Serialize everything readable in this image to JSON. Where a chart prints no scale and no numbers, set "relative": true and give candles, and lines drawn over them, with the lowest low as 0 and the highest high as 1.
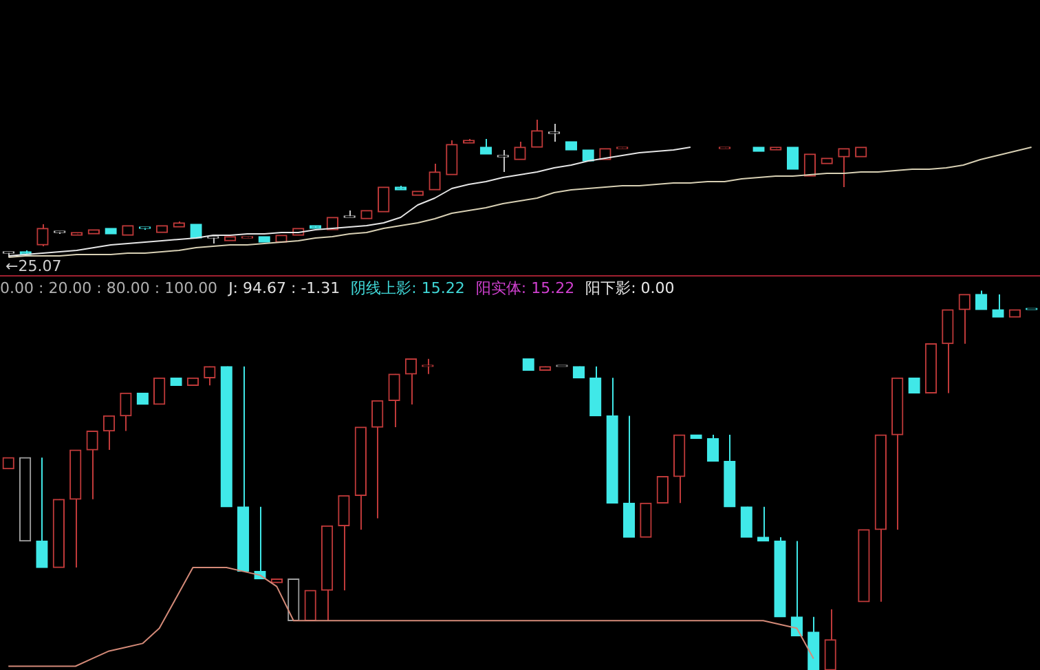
{
  "chart_data": [
    {
      "type": "candlestick",
      "relative": true,
      "annotations": [
        "←25.07"
      ],
      "categories": [
        null,
        null,
        null,
        null,
        null,
        null,
        null,
        null,
        null,
        null,
        null,
        null,
        null,
        null,
        null,
        null,
        null,
        null,
        null,
        null,
        null,
        null,
        null,
        null,
        null,
        null,
        null,
        null,
        null,
        null,
        null,
        null,
        null,
        null,
        null,
        null,
        null,
        null,
        null,
        null,
        null,
        null,
        null,
        null,
        null,
        null,
        null,
        null,
        null,
        null,
        null,
        null,
        null,
        null,
        null,
        null,
        null,
        null,
        null,
        null,
        null
      ],
      "ohlc": [
        [
          0.03,
          0.04,
          0,
          0.03
        ],
        [
          0.04,
          0.05,
          0.02,
          0.02
        ],
        [
          0.09,
          0.24,
          0.08,
          0.21
        ],
        [
          0.18,
          0.19,
          0.17,
          0.18
        ],
        [
          0.16,
          0.18,
          0.16,
          0.18
        ],
        [
          0.17,
          0.2,
          0.17,
          0.2
        ],
        [
          0.21,
          0.21,
          0.17,
          0.17
        ],
        [
          0.16,
          0.23,
          0.16,
          0.23
        ],
        [
          0.21,
          0.22,
          0.2,
          0.21
        ],
        [
          0.18,
          0.23,
          0.18,
          0.23
        ],
        [
          0.22,
          0.26,
          0.22,
          0.25
        ],
        [
          0.24,
          0.24,
          0.14,
          0.14
        ],
        [
          0.14,
          0.15,
          0.1,
          0.14
        ],
        [
          0.12,
          0.15,
          0.12,
          0.15
        ],
        [
          0.14,
          0.15,
          0.14,
          0.15
        ],
        [
          0.15,
          0.15,
          0.11,
          0.11
        ],
        [
          0.11,
          0.16,
          0.11,
          0.16
        ],
        [
          0.16,
          0.21,
          0.16,
          0.21
        ],
        [
          0.23,
          0.23,
          0.21,
          0.21
        ],
        [
          0.2,
          0.29,
          0.2,
          0.29
        ],
        [
          0.29,
          0.34,
          0.29,
          0.29
        ],
        [
          0.28,
          0.34,
          0.28,
          0.34
        ],
        [
          0.33,
          0.51,
          0.33,
          0.51
        ],
        [
          0.51,
          0.52,
          0.49,
          0.49
        ],
        [
          0.45,
          0.48,
          0.45,
          0.48
        ],
        [
          0.49,
          0.68,
          0.49,
          0.62
        ],
        [
          0.6,
          0.85,
          0.6,
          0.82
        ],
        [
          0.83,
          0.86,
          0.83,
          0.85
        ],
        [
          0.8,
          0.86,
          0.75,
          0.75
        ],
        [
          0.73,
          0.78,
          0.62,
          0.73
        ],
        [
          0.71,
          0.84,
          0.71,
          0.8
        ],
        [
          0.8,
          1,
          0.8,
          0.92
        ],
        [
          0.9,
          0.97,
          0.84,
          0.9
        ],
        [
          0.84,
          0.84,
          0.78,
          0.78
        ],
        [
          0.78,
          0.78,
          0.7,
          0.7
        ],
        [
          0.71,
          0.79,
          0.71,
          0.79
        ],
        [
          0.79,
          0.8,
          0.79,
          0.8
        ],
        null,
        null,
        null,
        null,
        null,
        [
          0.79,
          0.8,
          0.79,
          0.8
        ],
        null,
        [
          0.8,
          0.8,
          0.77,
          0.77
        ],
        [
          0.78,
          0.8,
          0.78,
          0.8
        ],
        [
          0.8,
          0.8,
          0.64,
          0.64
        ],
        [
          0.59,
          0.75,
          0.59,
          0.75
        ],
        [
          0.68,
          0.72,
          0.68,
          0.72
        ],
        [
          0.73,
          0.79,
          0.51,
          0.79
        ],
        [
          0.73,
          0.8,
          0.73,
          0.8
        ],
        null,
        null,
        null,
        null,
        null,
        null,
        null,
        null,
        null,
        null
      ],
      "colors": [
        "#c8c8c8",
        "#40e8e8",
        "#c03a3a",
        "#c8c8c8",
        "#c03a3a",
        "#c03a3a",
        "#40e8e8",
        "#c03a3a",
        "#40e8e8",
        "#c03a3a",
        "#c03a3a",
        "#40e8e8",
        "#c8c8c8",
        "#c03a3a",
        "#c03a3a",
        "#40e8e8",
        "#c03a3a",
        "#c03a3a",
        "#40e8e8",
        "#c03a3a",
        "#c8c8c8",
        "#c03a3a",
        "#c03a3a",
        "#40e8e8",
        "#c03a3a",
        "#c03a3a",
        "#c03a3a",
        "#c03a3a",
        "#40e8e8",
        "#c8c8c8",
        "#c03a3a",
        "#c03a3a",
        "#c8c8c8",
        "#40e8e8",
        "#40e8e8",
        "#c03a3a",
        "#c03a3a",
        null,
        null,
        null,
        null,
        null,
        "#c03a3a",
        null,
        "#40e8e8",
        "#c03a3a",
        "#40e8e8",
        "#c03a3a",
        "#c03a3a",
        "#c03a3a",
        "#c03a3a",
        null,
        null,
        null,
        null,
        null,
        null,
        null,
        null,
        null,
        null
      ],
      "series": [
        {
          "type": "line",
          "color": "#e6e6e6",
          "values": [
            0.01,
            0.02,
            0.03,
            0.04,
            0.05,
            0.07,
            0.09,
            0.1,
            0.11,
            0.12,
            0.13,
            0.14,
            0.16,
            0.16,
            0.17,
            0.17,
            0.18,
            0.18,
            0.2,
            0.21,
            0.22,
            0.23,
            0.25,
            0.29,
            0.38,
            0.43,
            0.5,
            0.53,
            0.55,
            0.58,
            0.6,
            0.62,
            0.65,
            0.67,
            0.7,
            0.72,
            0.74,
            0.76,
            0.77,
            0.78,
            0.8,
            null,
            null,
            null,
            null,
            null,
            null,
            null,
            null,
            null,
            null,
            null,
            null,
            null,
            null,
            null,
            null,
            null,
            null,
            null,
            null
          ]
        },
        {
          "type": "line",
          "color": "#d8d0b4",
          "values": [
            0,
            0.01,
            0.01,
            0.01,
            0.02,
            0.02,
            0.02,
            0.03,
            0.03,
            0.04,
            0.05,
            0.07,
            0.08,
            0.09,
            0.09,
            0.1,
            0.11,
            0.12,
            0.14,
            0.15,
            0.17,
            0.18,
            0.21,
            0.23,
            0.25,
            0.28,
            0.32,
            0.34,
            0.36,
            0.39,
            0.41,
            0.43,
            0.47,
            0.49,
            0.5,
            0.51,
            0.52,
            0.52,
            0.53,
            0.54,
            0.54,
            0.55,
            0.55,
            0.57,
            0.58,
            0.59,
            0.59,
            0.6,
            0.61,
            0.61,
            0.62,
            0.62,
            0.63,
            0.64,
            0.64,
            0.65,
            0.67,
            0.71,
            0.74,
            0.77,
            0.8
          ]
        }
      ]
    },
    {
      "type": "candlestick",
      "relative": true,
      "annotations": [
        "0.00 : 20.00 : 80.00 : 100.00",
        "J: 94.67 : -1.31",
        "阴线上影: 15.22",
        "阳实体: 15.22",
        "阳下影: 0.00"
      ],
      "categories": [
        null,
        null,
        null,
        null,
        null,
        null,
        null,
        null,
        null,
        null,
        null,
        null,
        null,
        null,
        null,
        null,
        null,
        null,
        null,
        null,
        null,
        null,
        null,
        null,
        null,
        null,
        null,
        null,
        null,
        null,
        null,
        null,
        null,
        null,
        null,
        null,
        null,
        null,
        null,
        null,
        null,
        null,
        null,
        null,
        null,
        null,
        null,
        null,
        null,
        null,
        null,
        null,
        null,
        null,
        null,
        null,
        null,
        null,
        null,
        null,
        null,
        null
      ],
      "ohlc": [
        [
          0.53,
          0.56,
          0.53,
          0.56
        ],
        [
          0.34,
          0.56,
          0.34,
          0.56
        ],
        [
          0.34,
          0.56,
          0.27,
          0.27
        ],
        [
          0.27,
          0.45,
          0.27,
          0.45
        ],
        [
          0.45,
          0.58,
          0.27,
          0.58
        ],
        [
          0.58,
          0.63,
          0.45,
          0.63
        ],
        [
          0.63,
          0.67,
          0.58,
          0.67
        ],
        [
          0.67,
          0.73,
          0.63,
          0.73
        ],
        [
          0.73,
          0.73,
          0.7,
          0.7
        ],
        [
          0.7,
          0.77,
          0.7,
          0.77
        ],
        [
          0.77,
          0.77,
          0.75,
          0.75
        ],
        [
          0.75,
          0.77,
          0.75,
          0.77
        ],
        [
          0.77,
          0.8,
          0.75,
          0.8
        ],
        [
          0.8,
          0.8,
          0.43,
          0.43
        ],
        [
          0.43,
          0.8,
          0.26,
          0.26
        ],
        [
          0.26,
          0.43,
          0.24,
          0.24
        ],
        [
          0.23,
          0.24,
          0.23,
          0.24
        ],
        [
          0.13,
          0.24,
          0.13,
          0.24
        ],
        [
          0.13,
          0.21,
          0.13,
          0.21
        ],
        [
          0.21,
          0.38,
          0.13,
          0.38
        ],
        [
          0.38,
          0.46,
          0.21,
          0.46
        ],
        [
          0.46,
          0.64,
          0.37,
          0.64
        ],
        [
          0.64,
          0.71,
          0.4,
          0.71
        ],
        [
          0.71,
          0.78,
          0.64,
          0.78
        ],
        [
          0.78,
          0.82,
          0.7,
          0.82
        ],
        [
          0.8,
          0.82,
          0.78,
          0.8
        ],
        null,
        null,
        null,
        null,
        null,
        [
          0.82,
          0.82,
          0.79,
          0.79
        ],
        [
          0.79,
          0.8,
          0.79,
          0.8
        ],
        [
          0.8,
          0.8,
          0.8,
          0.8
        ],
        [
          0.8,
          0.8,
          0.77,
          0.77
        ],
        [
          0.77,
          0.8,
          0.67,
          0.67
        ],
        [
          0.67,
          0.77,
          0.44,
          0.44
        ],
        [
          0.44,
          0.67,
          0.35,
          0.35
        ],
        [
          0.35,
          0.44,
          0.35,
          0.44
        ],
        [
          0.44,
          0.51,
          0.44,
          0.51
        ],
        [
          0.51,
          0.62,
          0.44,
          0.62
        ],
        [
          0.62,
          0.62,
          0.61,
          0.61
        ],
        [
          0.61,
          0.62,
          0.55,
          0.55
        ],
        [
          0.55,
          0.62,
          0.43,
          0.43
        ],
        [
          0.43,
          0.43,
          0.35,
          0.35
        ],
        [
          0.35,
          0.43,
          0.34,
          0.34
        ],
        [
          0.34,
          0.35,
          0.14,
          0.14
        ],
        [
          0.14,
          0.34,
          0.09,
          0.09
        ],
        [
          0.1,
          0.14,
          0,
          0
        ],
        [
          0,
          0.16,
          0,
          0.08
        ],
        null,
        [
          0.18,
          0.37,
          0.18,
          0.37
        ],
        [
          0.37,
          0.62,
          0.18,
          0.62
        ],
        [
          0.62,
          0.77,
          0.37,
          0.77
        ],
        [
          0.77,
          0.77,
          0.73,
          0.73
        ],
        [
          0.73,
          0.86,
          0.73,
          0.86
        ],
        [
          0.86,
          0.95,
          0.73,
          0.95
        ],
        [
          0.95,
          0.99,
          0.86,
          0.99
        ],
        [
          0.99,
          1,
          0.95,
          0.95
        ],
        [
          0.95,
          0.99,
          0.93,
          0.93
        ],
        [
          0.93,
          0.95,
          0.93,
          0.95
        ],
        [
          0.95,
          0.95,
          0.95,
          0.95
        ]
      ],
      "colors": [
        "#c03a3a",
        "#a0a0a0",
        "#40e8e8",
        "#c03a3a",
        "#c03a3a",
        "#c03a3a",
        "#c03a3a",
        "#c03a3a",
        "#40e8e8",
        "#c03a3a",
        "#40e8e8",
        "#c03a3a",
        "#c03a3a",
        "#40e8e8",
        "#40e8e8",
        "#40e8e8",
        "#c03a3a",
        "#a0a0a0",
        "#c03a3a",
        "#c03a3a",
        "#c03a3a",
        "#c03a3a",
        "#c03a3a",
        "#c03a3a",
        "#c03a3a",
        "#c03a3a",
        null,
        null,
        null,
        null,
        null,
        "#40e8e8",
        "#c03a3a",
        "#a0a0a0",
        "#40e8e8",
        "#40e8e8",
        "#40e8e8",
        "#40e8e8",
        "#c03a3a",
        "#c03a3a",
        "#c03a3a",
        "#40e8e8",
        "#40e8e8",
        "#40e8e8",
        "#40e8e8",
        "#40e8e8",
        "#40e8e8",
        "#40e8e8",
        "#40e8e8",
        "#c03a3a",
        null,
        "#c03a3a",
        "#c03a3a",
        "#c03a3a",
        "#40e8e8",
        "#c03a3a",
        "#c03a3a",
        "#c03a3a",
        "#40e8e8",
        "#40e8e8",
        "#c03a3a",
        "#40e8e8"
      ],
      "series": [
        {
          "type": "line",
          "color": "#d48a78",
          "values": [
            0.01,
            0.01,
            0.01,
            0.01,
            0.01,
            0.03,
            0.05,
            0.06,
            0.07,
            0.11,
            0.19,
            0.27,
            0.27,
            0.27,
            0.26,
            0.25,
            0.22,
            0.13,
            0.13,
            0.13,
            0.13,
            0.13,
            0.13,
            0.13,
            0.13,
            0.13,
            0.13,
            0.13,
            0.13,
            0.13,
            0.13,
            0.13,
            0.13,
            0.13,
            0.13,
            0.13,
            0.13,
            0.13,
            0.13,
            0.13,
            0.13,
            0.13,
            0.13,
            0.13,
            0.13,
            0.13,
            0.12,
            0.11,
            0.03,
            null,
            null,
            null,
            null,
            null,
            null,
            null,
            null,
            null,
            null,
            null,
            null,
            null
          ]
        }
      ]
    }
  ]
}
